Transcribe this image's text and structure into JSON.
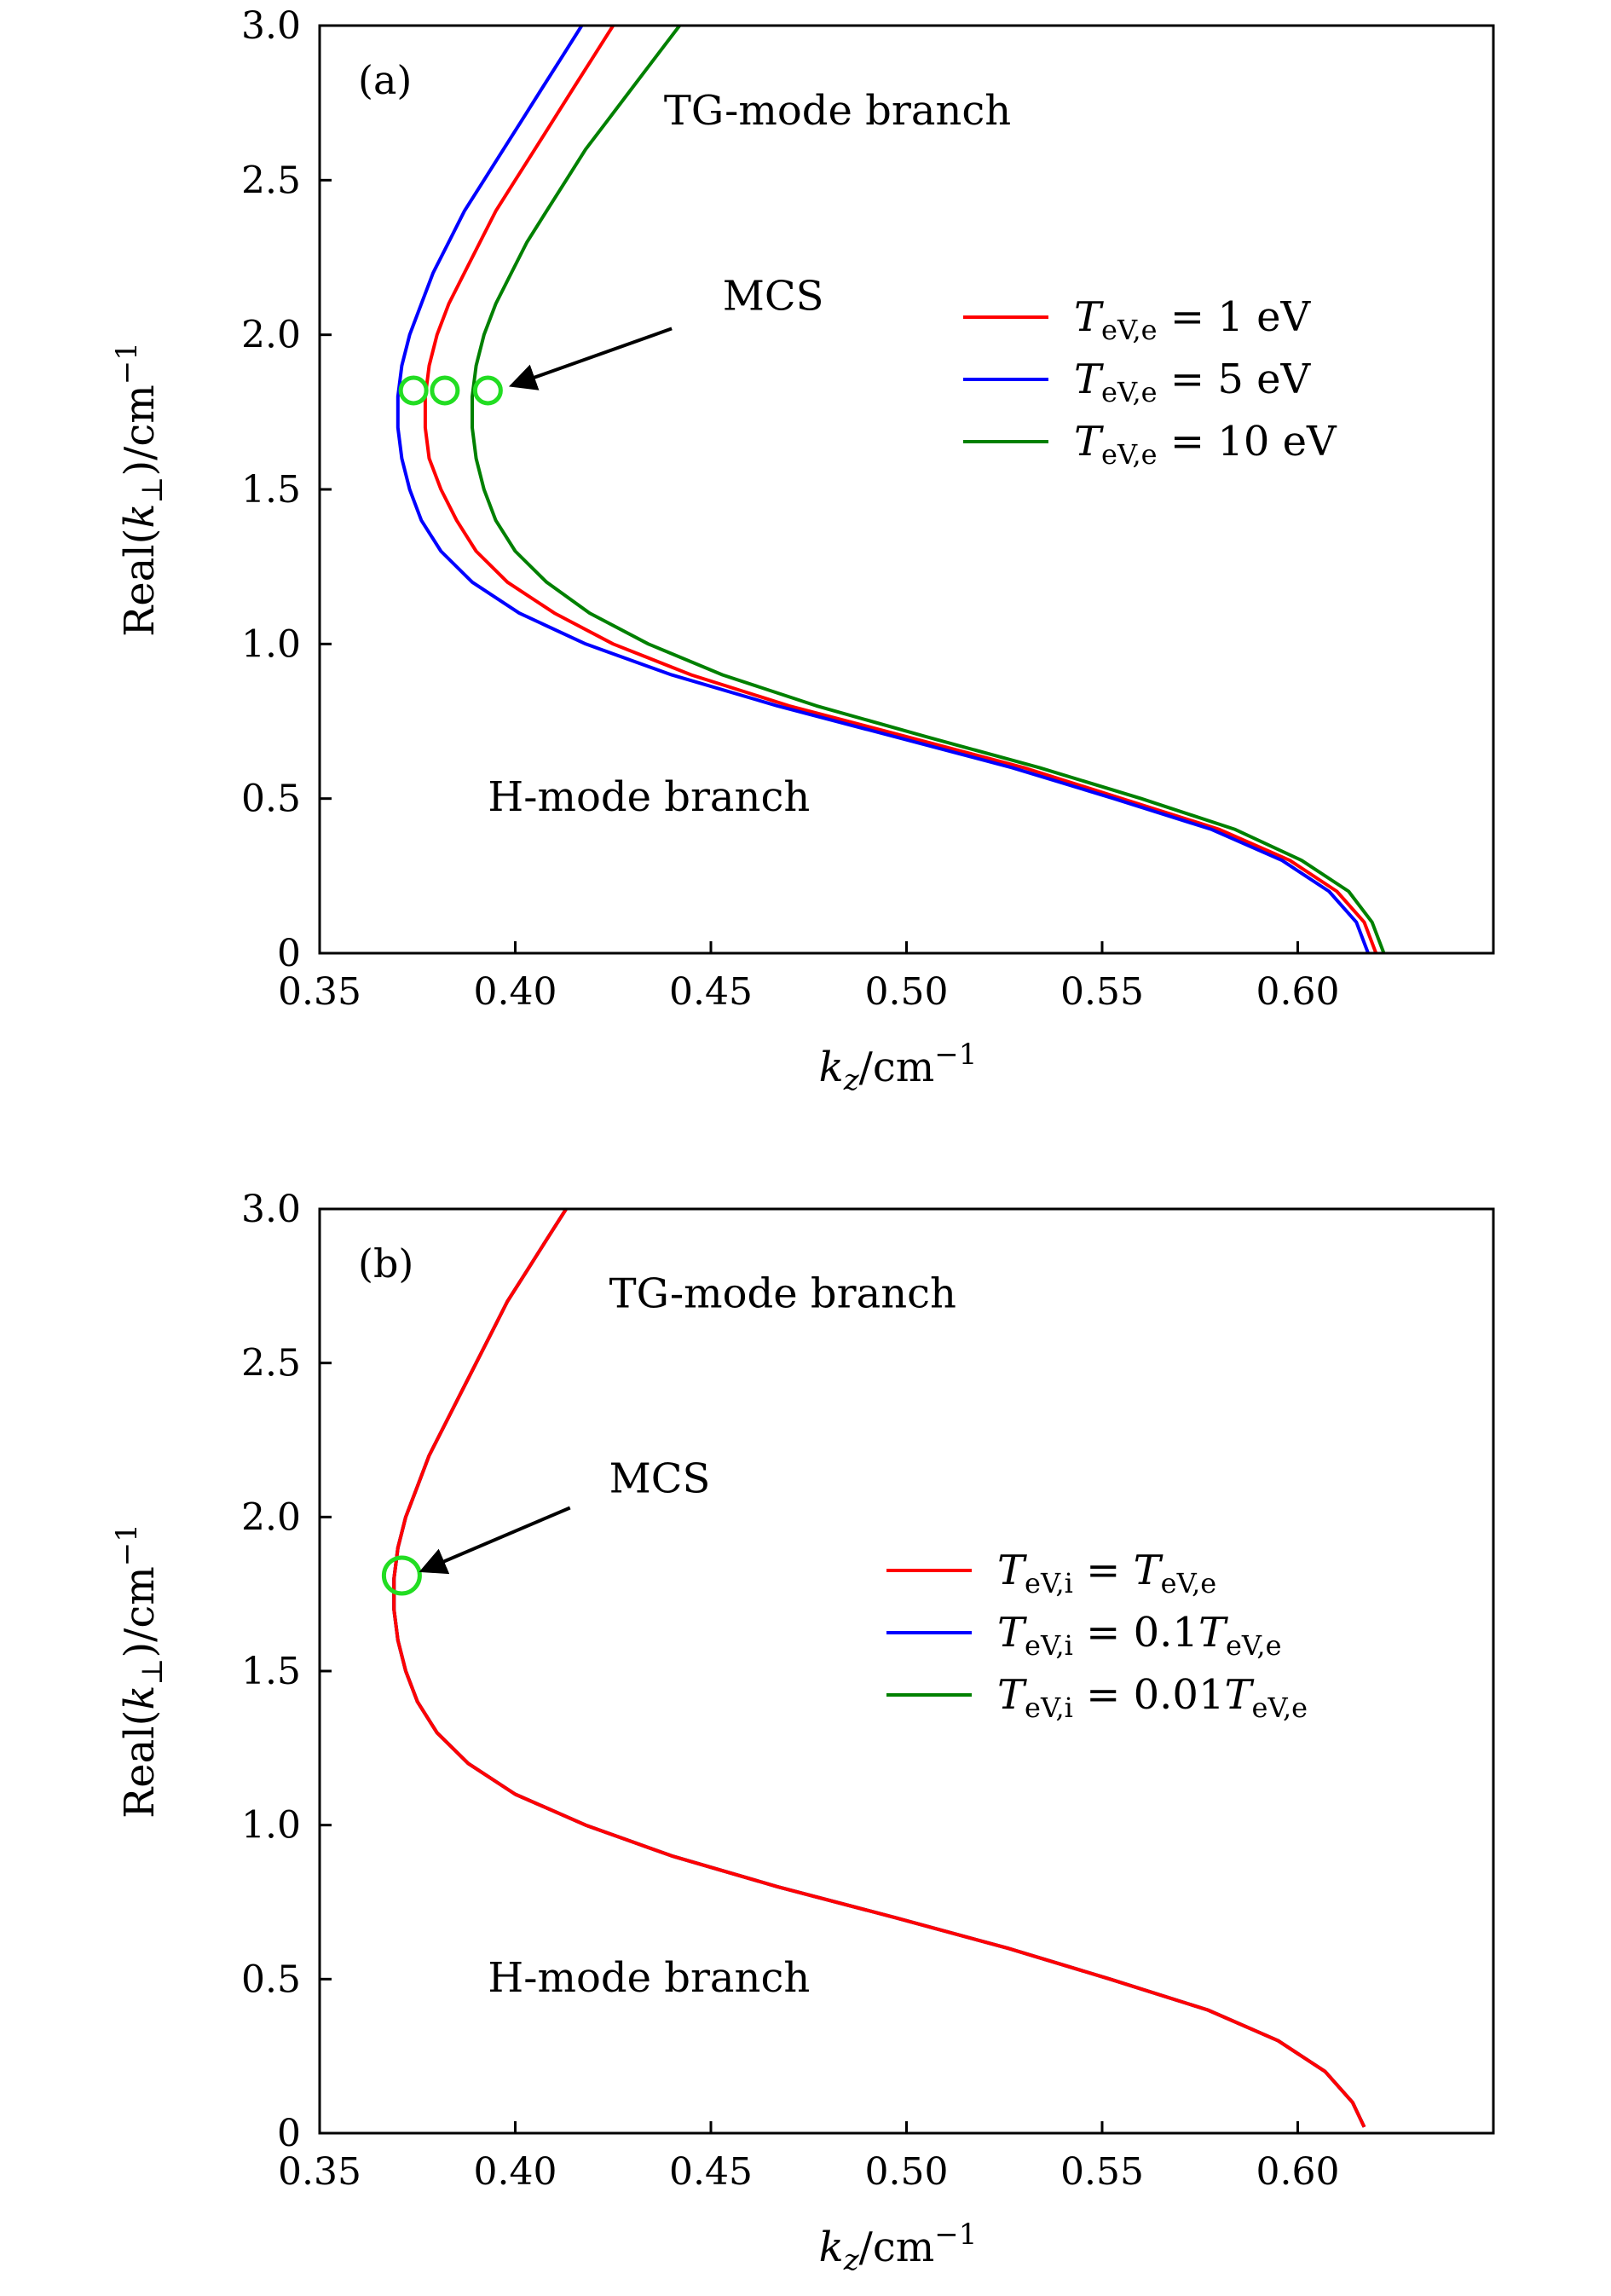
{
  "chart_data": [
    {
      "type": "line",
      "panel_label": "(a)",
      "xlabel": {
        "base": "k",
        "sub": "z",
        "unit": "/cm",
        "sup": "−1"
      },
      "ylabel": {
        "pre": "Real(",
        "var": "k",
        "sub": "⊥",
        "post": ")/cm",
        "sup": "−1"
      },
      "xlim": [
        0.35,
        0.65
      ],
      "ylim": [
        0,
        3.0
      ],
      "xticks": [
        0.35,
        0.4,
        0.45,
        0.5,
        0.55,
        0.6
      ],
      "xtick_labels": [
        "0.35",
        "0.40",
        "0.45",
        "0.50",
        "0.55",
        "0.60"
      ],
      "yticks": [
        0,
        0.5,
        1.0,
        1.5,
        2.0,
        2.5,
        3.0
      ],
      "ytick_labels": [
        "0",
        "0.5",
        "1.0",
        "1.5",
        "2.0",
        "2.5",
        "3.0"
      ],
      "grid": false,
      "legend_position": "right-middle",
      "series": [
        {
          "name": "TeV,e = 1 eV",
          "legend": {
            "var": "T",
            "sub": "eV,e",
            "rest": " = 1 eV"
          },
          "color": "#ff0000",
          "points": [
            [
              0.62,
              0.0
            ],
            [
              0.617,
              0.1
            ],
            [
              0.61,
              0.2
            ],
            [
              0.598,
              0.3
            ],
            [
              0.58,
              0.4
            ],
            [
              0.555,
              0.5
            ],
            [
              0.53,
              0.6
            ],
            [
              0.5,
              0.7
            ],
            [
              0.47,
              0.8
            ],
            [
              0.445,
              0.9
            ],
            [
              0.425,
              1.0
            ],
            [
              0.41,
              1.1
            ],
            [
              0.398,
              1.2
            ],
            [
              0.39,
              1.3
            ],
            [
              0.385,
              1.4
            ],
            [
              0.381,
              1.5
            ],
            [
              0.378,
              1.6
            ],
            [
              0.377,
              1.7
            ],
            [
              0.377,
              1.8
            ],
            [
              0.378,
              1.9
            ],
            [
              0.38,
              2.0
            ],
            [
              0.383,
              2.1
            ],
            [
              0.387,
              2.2
            ],
            [
              0.391,
              2.3
            ],
            [
              0.395,
              2.4
            ],
            [
              0.4,
              2.5
            ],
            [
              0.405,
              2.6
            ],
            [
              0.41,
              2.7
            ],
            [
              0.415,
              2.8
            ],
            [
              0.42,
              2.9
            ],
            [
              0.425,
              3.0
            ]
          ]
        },
        {
          "name": "TeV,e = 5 eV",
          "legend": {
            "var": "T",
            "sub": "eV,e",
            "rest": " = 5 eV"
          },
          "color": "#0000ff",
          "points": [
            [
              0.618,
              0.0
            ],
            [
              0.615,
              0.1
            ],
            [
              0.608,
              0.2
            ],
            [
              0.596,
              0.3
            ],
            [
              0.578,
              0.4
            ],
            [
              0.553,
              0.5
            ],
            [
              0.527,
              0.6
            ],
            [
              0.497,
              0.7
            ],
            [
              0.467,
              0.8
            ],
            [
              0.44,
              0.9
            ],
            [
              0.418,
              1.0
            ],
            [
              0.401,
              1.1
            ],
            [
              0.389,
              1.2
            ],
            [
              0.381,
              1.3
            ],
            [
              0.376,
              1.4
            ],
            [
              0.373,
              1.5
            ],
            [
              0.371,
              1.6
            ],
            [
              0.37,
              1.7
            ],
            [
              0.37,
              1.8
            ],
            [
              0.371,
              1.9
            ],
            [
              0.373,
              2.0
            ],
            [
              0.376,
              2.1
            ],
            [
              0.379,
              2.2
            ],
            [
              0.383,
              2.3
            ],
            [
              0.387,
              2.4
            ],
            [
              0.392,
              2.5
            ],
            [
              0.397,
              2.6
            ],
            [
              0.402,
              2.7
            ],
            [
              0.407,
              2.8
            ],
            [
              0.412,
              2.9
            ],
            [
              0.417,
              3.0
            ]
          ]
        },
        {
          "name": "TeV,e = 10 eV",
          "legend": {
            "var": "T",
            "sub": "eV,e",
            "rest": " = 10 eV"
          },
          "color": "#008000",
          "points": [
            [
              0.622,
              0.0
            ],
            [
              0.619,
              0.1
            ],
            [
              0.613,
              0.2
            ],
            [
              0.601,
              0.3
            ],
            [
              0.584,
              0.4
            ],
            [
              0.56,
              0.5
            ],
            [
              0.534,
              0.6
            ],
            [
              0.505,
              0.7
            ],
            [
              0.477,
              0.8
            ],
            [
              0.453,
              0.9
            ],
            [
              0.434,
              1.0
            ],
            [
              0.419,
              1.1
            ],
            [
              0.408,
              1.2
            ],
            [
              0.4,
              1.3
            ],
            [
              0.395,
              1.4
            ],
            [
              0.392,
              1.5
            ],
            [
              0.39,
              1.6
            ],
            [
              0.389,
              1.7
            ],
            [
              0.389,
              1.8
            ],
            [
              0.39,
              1.9
            ],
            [
              0.392,
              2.0
            ],
            [
              0.395,
              2.1
            ],
            [
              0.399,
              2.2
            ],
            [
              0.403,
              2.3
            ],
            [
              0.408,
              2.4
            ],
            [
              0.413,
              2.5
            ],
            [
              0.418,
              2.6
            ],
            [
              0.424,
              2.7
            ],
            [
              0.43,
              2.8
            ],
            [
              0.436,
              2.9
            ],
            [
              0.442,
              3.0
            ]
          ]
        }
      ],
      "markers": [
        {
          "x": 0.374,
          "y": 1.82,
          "size": "small",
          "color": "#22dd22"
        },
        {
          "x": 0.382,
          "y": 1.82,
          "size": "small",
          "color": "#22dd22"
        },
        {
          "x": 0.393,
          "y": 1.82,
          "size": "small",
          "color": "#22dd22"
        }
      ],
      "annotations": [
        {
          "text": "TG-mode branch",
          "x": 0.438,
          "y": 2.68,
          "anchor": "start"
        },
        {
          "text": "H-mode branch",
          "x": 0.393,
          "y": 0.46,
          "anchor": "start"
        },
        {
          "text": "MCS",
          "x": 0.453,
          "y": 2.08,
          "anchor": "start"
        }
      ],
      "arrow": {
        "from": [
          0.44,
          2.02
        ],
        "to": [
          0.4,
          1.84
        ]
      }
    },
    {
      "type": "line",
      "panel_label": "(b)",
      "xlabel": {
        "base": "k",
        "sub": "z",
        "unit": "/cm",
        "sup": "−1"
      },
      "ylabel": {
        "pre": "Real(",
        "var": "k",
        "sub": "⊥",
        "post": ")/cm",
        "sup": "−1"
      },
      "xlim": [
        0.35,
        0.65
      ],
      "ylim": [
        0,
        3.0
      ],
      "xticks": [
        0.35,
        0.4,
        0.45,
        0.5,
        0.55,
        0.6
      ],
      "xtick_labels": [
        "0.35",
        "0.40",
        "0.45",
        "0.50",
        "0.55",
        "0.60"
      ],
      "yticks": [
        0,
        0.5,
        1.0,
        1.5,
        2.0,
        2.5,
        3.0
      ],
      "ytick_labels": [
        "0",
        "0.5",
        "1.0",
        "1.5",
        "2.0",
        "2.5",
        "3.0"
      ],
      "grid": false,
      "legend_position": "right-middle",
      "series": [
        {
          "name": "TeV,i = TeV,e",
          "legend": {
            "var": "T",
            "sub": "eV,i",
            "rest": " = ",
            "var2": "T",
            "sub2": "eV,e"
          },
          "color": "#ff0000",
          "points": [
            [
              0.617,
              0.02
            ],
            [
              0.614,
              0.1
            ],
            [
              0.607,
              0.2
            ],
            [
              0.595,
              0.3
            ],
            [
              0.577,
              0.4
            ],
            [
              0.552,
              0.5
            ],
            [
              0.526,
              0.6
            ],
            [
              0.497,
              0.7
            ],
            [
              0.467,
              0.8
            ],
            [
              0.44,
              0.9
            ],
            [
              0.418,
              1.0
            ],
            [
              0.4,
              1.1
            ],
            [
              0.388,
              1.2
            ],
            [
              0.38,
              1.3
            ],
            [
              0.375,
              1.4
            ],
            [
              0.372,
              1.5
            ],
            [
              0.37,
              1.6
            ],
            [
              0.369,
              1.7
            ],
            [
              0.369,
              1.8
            ],
            [
              0.37,
              1.9
            ],
            [
              0.372,
              2.0
            ],
            [
              0.375,
              2.1
            ],
            [
              0.378,
              2.2
            ],
            [
              0.382,
              2.3
            ],
            [
              0.386,
              2.4
            ],
            [
              0.39,
              2.5
            ],
            [
              0.394,
              2.6
            ],
            [
              0.398,
              2.7
            ],
            [
              0.403,
              2.8
            ],
            [
              0.408,
              2.9
            ],
            [
              0.413,
              3.0
            ]
          ]
        },
        {
          "name": "TeV,i = 0.1TeV,e",
          "legend": {
            "var": "T",
            "sub": "eV,i",
            "rest": " = 0.1",
            "var2": "T",
            "sub2": "eV,e"
          },
          "color": "#0000ff",
          "points": [
            [
              0.617,
              0.02
            ],
            [
              0.614,
              0.1
            ],
            [
              0.607,
              0.2
            ],
            [
              0.595,
              0.3
            ],
            [
              0.577,
              0.4
            ],
            [
              0.552,
              0.5
            ],
            [
              0.526,
              0.6
            ],
            [
              0.497,
              0.7
            ],
            [
              0.467,
              0.8
            ],
            [
              0.44,
              0.9
            ],
            [
              0.418,
              1.0
            ],
            [
              0.4,
              1.1
            ],
            [
              0.388,
              1.2
            ],
            [
              0.38,
              1.3
            ],
            [
              0.375,
              1.4
            ],
            [
              0.372,
              1.5
            ],
            [
              0.37,
              1.6
            ],
            [
              0.369,
              1.7
            ],
            [
              0.369,
              1.8
            ],
            [
              0.37,
              1.9
            ],
            [
              0.372,
              2.0
            ],
            [
              0.375,
              2.1
            ],
            [
              0.378,
              2.2
            ],
            [
              0.382,
              2.3
            ],
            [
              0.386,
              2.4
            ],
            [
              0.39,
              2.5
            ],
            [
              0.394,
              2.6
            ],
            [
              0.398,
              2.7
            ],
            [
              0.403,
              2.8
            ],
            [
              0.408,
              2.9
            ],
            [
              0.413,
              3.0
            ]
          ]
        },
        {
          "name": "TeV,i = 0.01TeV,e",
          "legend": {
            "var": "T",
            "sub": "eV,i",
            "rest": " = 0.01",
            "var2": "T",
            "sub2": "eV,e"
          },
          "color": "#008000",
          "points": [
            [
              0.617,
              0.02
            ],
            [
              0.614,
              0.1
            ],
            [
              0.607,
              0.2
            ],
            [
              0.595,
              0.3
            ],
            [
              0.577,
              0.4
            ],
            [
              0.552,
              0.5
            ],
            [
              0.526,
              0.6
            ],
            [
              0.497,
              0.7
            ],
            [
              0.467,
              0.8
            ],
            [
              0.44,
              0.9
            ],
            [
              0.418,
              1.0
            ],
            [
              0.4,
              1.1
            ],
            [
              0.388,
              1.2
            ],
            [
              0.38,
              1.3
            ],
            [
              0.375,
              1.4
            ],
            [
              0.372,
              1.5
            ],
            [
              0.37,
              1.6
            ],
            [
              0.369,
              1.7
            ],
            [
              0.369,
              1.8
            ],
            [
              0.37,
              1.9
            ],
            [
              0.372,
              2.0
            ],
            [
              0.375,
              2.1
            ],
            [
              0.378,
              2.2
            ],
            [
              0.382,
              2.3
            ],
            [
              0.386,
              2.4
            ],
            [
              0.39,
              2.5
            ],
            [
              0.394,
              2.6
            ],
            [
              0.398,
              2.7
            ],
            [
              0.403,
              2.8
            ],
            [
              0.408,
              2.9
            ],
            [
              0.413,
              3.0
            ]
          ]
        }
      ],
      "draw_order": [
        2,
        1,
        0
      ],
      "markers": [
        {
          "x": 0.371,
          "y": 1.81,
          "size": "large",
          "color": "#22dd22"
        }
      ],
      "annotations": [
        {
          "text": "TG-mode branch",
          "x": 0.424,
          "y": 2.68,
          "anchor": "start"
        },
        {
          "text": "H-mode branch",
          "x": 0.393,
          "y": 0.46,
          "anchor": "start"
        },
        {
          "text": "MCS",
          "x": 0.424,
          "y": 2.08,
          "anchor": "start"
        }
      ],
      "arrow": {
        "from": [
          0.414,
          2.03
        ],
        "to": [
          0.377,
          1.83
        ]
      }
    }
  ]
}
